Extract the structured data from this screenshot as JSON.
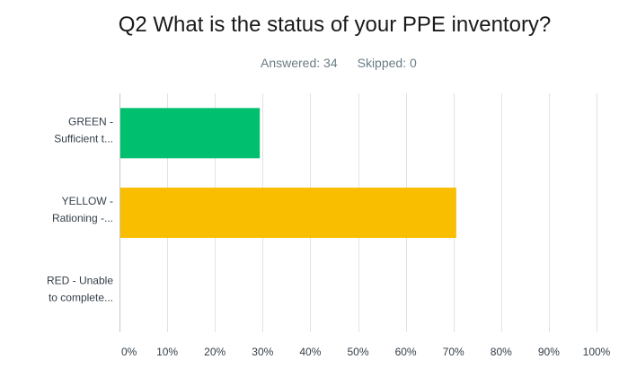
{
  "chart_data": {
    "type": "bar",
    "orientation": "horizontal",
    "title": "Q2 What is the status of your PPE inventory?",
    "answered_label": "Answered: 34",
    "skipped_label": "Skipped: 0",
    "categories": [
      [
        "GREEN -",
        "Sufficient t..."
      ],
      [
        "YELLOW -",
        "Rationing -..."
      ],
      [
        "RED - Unable",
        "to complete..."
      ]
    ],
    "values": [
      29.41,
      70.59,
      0
    ],
    "bar_colors": [
      "#00bf6f",
      "#f9be00",
      "#f05b4f"
    ],
    "xlim": [
      0,
      100
    ],
    "x_ticks": [
      "0%",
      "10%",
      "20%",
      "30%",
      "40%",
      "50%",
      "60%",
      "70%",
      "80%",
      "90%",
      "100%"
    ],
    "grid": true,
    "grid_color": "#e2e2e2",
    "legend": "none"
  }
}
